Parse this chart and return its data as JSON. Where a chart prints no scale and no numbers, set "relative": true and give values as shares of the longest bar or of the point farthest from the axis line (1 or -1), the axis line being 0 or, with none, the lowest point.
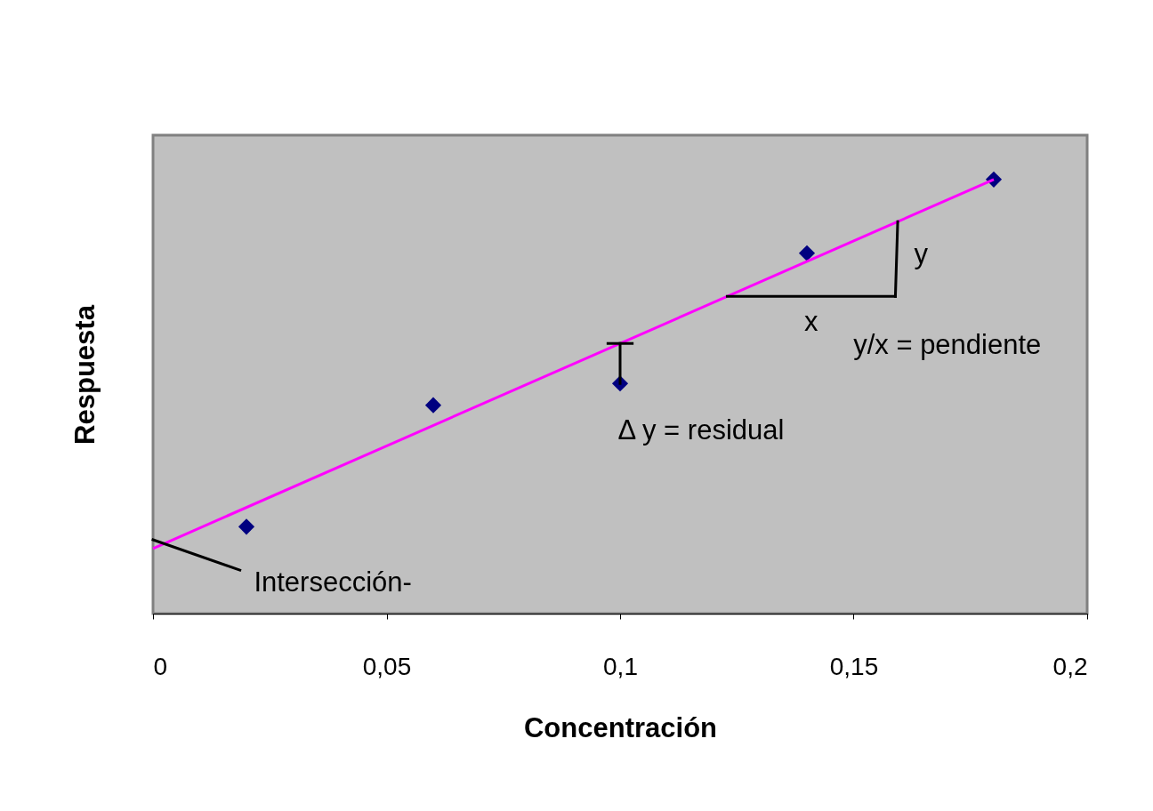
{
  "chart_data": {
    "type": "scatter",
    "xlabel": "Concentración",
    "ylabel": "Respuesta",
    "relative": true,
    "marker": "diamond",
    "xlim": [
      0,
      0.2
    ],
    "xticks": [
      0,
      {
        "value": 0.05,
        "label": "0,05"
      },
      {
        "value": 0.1,
        "label": "0,1"
      },
      {
        "value": 0.15,
        "label": "0,15"
      },
      {
        "value": 0.2,
        "label": "0,2"
      }
    ],
    "series": [
      {
        "color": "#000080",
        "x": [
          0.02,
          0.06,
          0.1,
          0.14,
          0.18
        ],
        "values": [
          0.2,
          0.48,
          0.53,
          0.83,
          1.0
        ]
      },
      {
        "type": "line",
        "color": "#ff00ff",
        "marker": "none",
        "x": [
          0,
          0.18
        ],
        "values": [
          0.15,
          1.0
        ]
      }
    ],
    "annotations": [
      "Intersección-",
      "Δ y = residual",
      "x",
      "y",
      "y/x = pendiente"
    ]
  }
}
